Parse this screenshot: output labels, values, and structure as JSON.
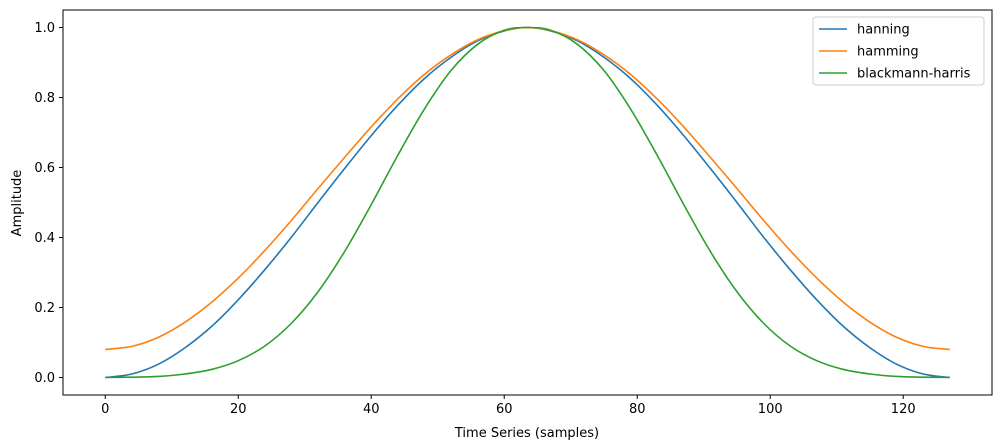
{
  "chart_data": {
    "type": "line",
    "title": "",
    "xlabel": "Time Series (samples)",
    "ylabel": "Amplitude",
    "xlim": [
      -6.35,
      133.35
    ],
    "ylim": [
      -0.05,
      1.05
    ],
    "xticks": [
      0,
      20,
      40,
      60,
      80,
      100,
      120
    ],
    "yticks": [
      0.0,
      0.2,
      0.4,
      0.6,
      0.8,
      1.0
    ],
    "xtick_labels": [
      "0",
      "20",
      "40",
      "60",
      "80",
      "100",
      "120"
    ],
    "ytick_labels": [
      "0.0",
      "0.2",
      "0.4",
      "0.6",
      "0.8",
      "1.0"
    ],
    "grid": false,
    "legend_position": "top-right",
    "x": [
      0,
      4,
      8,
      12,
      16,
      20,
      24,
      28,
      32,
      36,
      40,
      44,
      48,
      52,
      56,
      60,
      63.5,
      67,
      71,
      75,
      79,
      83,
      87,
      91,
      95,
      99,
      103,
      107,
      111,
      115,
      119,
      123,
      127
    ],
    "series": [
      {
        "name": "hanning",
        "color": "#1f77b4",
        "values": [
          0.0,
          0.01,
          0.038,
          0.085,
          0.146,
          0.222,
          0.308,
          0.401,
          0.5,
          0.597,
          0.691,
          0.778,
          0.854,
          0.915,
          0.962,
          0.99,
          1.0,
          0.99,
          0.962,
          0.915,
          0.854,
          0.778,
          0.691,
          0.597,
          0.5,
          0.401,
          0.308,
          0.222,
          0.146,
          0.085,
          0.038,
          0.01,
          0.0
        ]
      },
      {
        "name": "hamming",
        "color": "#ff7f0e",
        "values": [
          0.08,
          0.089,
          0.115,
          0.158,
          0.215,
          0.284,
          0.363,
          0.449,
          0.54,
          0.629,
          0.716,
          0.796,
          0.866,
          0.922,
          0.965,
          0.991,
          1.0,
          0.991,
          0.965,
          0.922,
          0.866,
          0.796,
          0.716,
          0.629,
          0.54,
          0.449,
          0.363,
          0.284,
          0.215,
          0.158,
          0.115,
          0.089,
          0.08
        ]
      },
      {
        "name": "blackmann-harris",
        "color": "#2ca02c",
        "values": [
          0.0,
          0.001,
          0.003,
          0.01,
          0.023,
          0.048,
          0.09,
          0.155,
          0.245,
          0.36,
          0.494,
          0.635,
          0.767,
          0.877,
          0.952,
          0.992,
          1.0,
          0.992,
          0.952,
          0.877,
          0.767,
          0.635,
          0.494,
          0.36,
          0.245,
          0.155,
          0.09,
          0.048,
          0.023,
          0.01,
          0.003,
          0.001,
          0.0
        ]
      }
    ]
  }
}
